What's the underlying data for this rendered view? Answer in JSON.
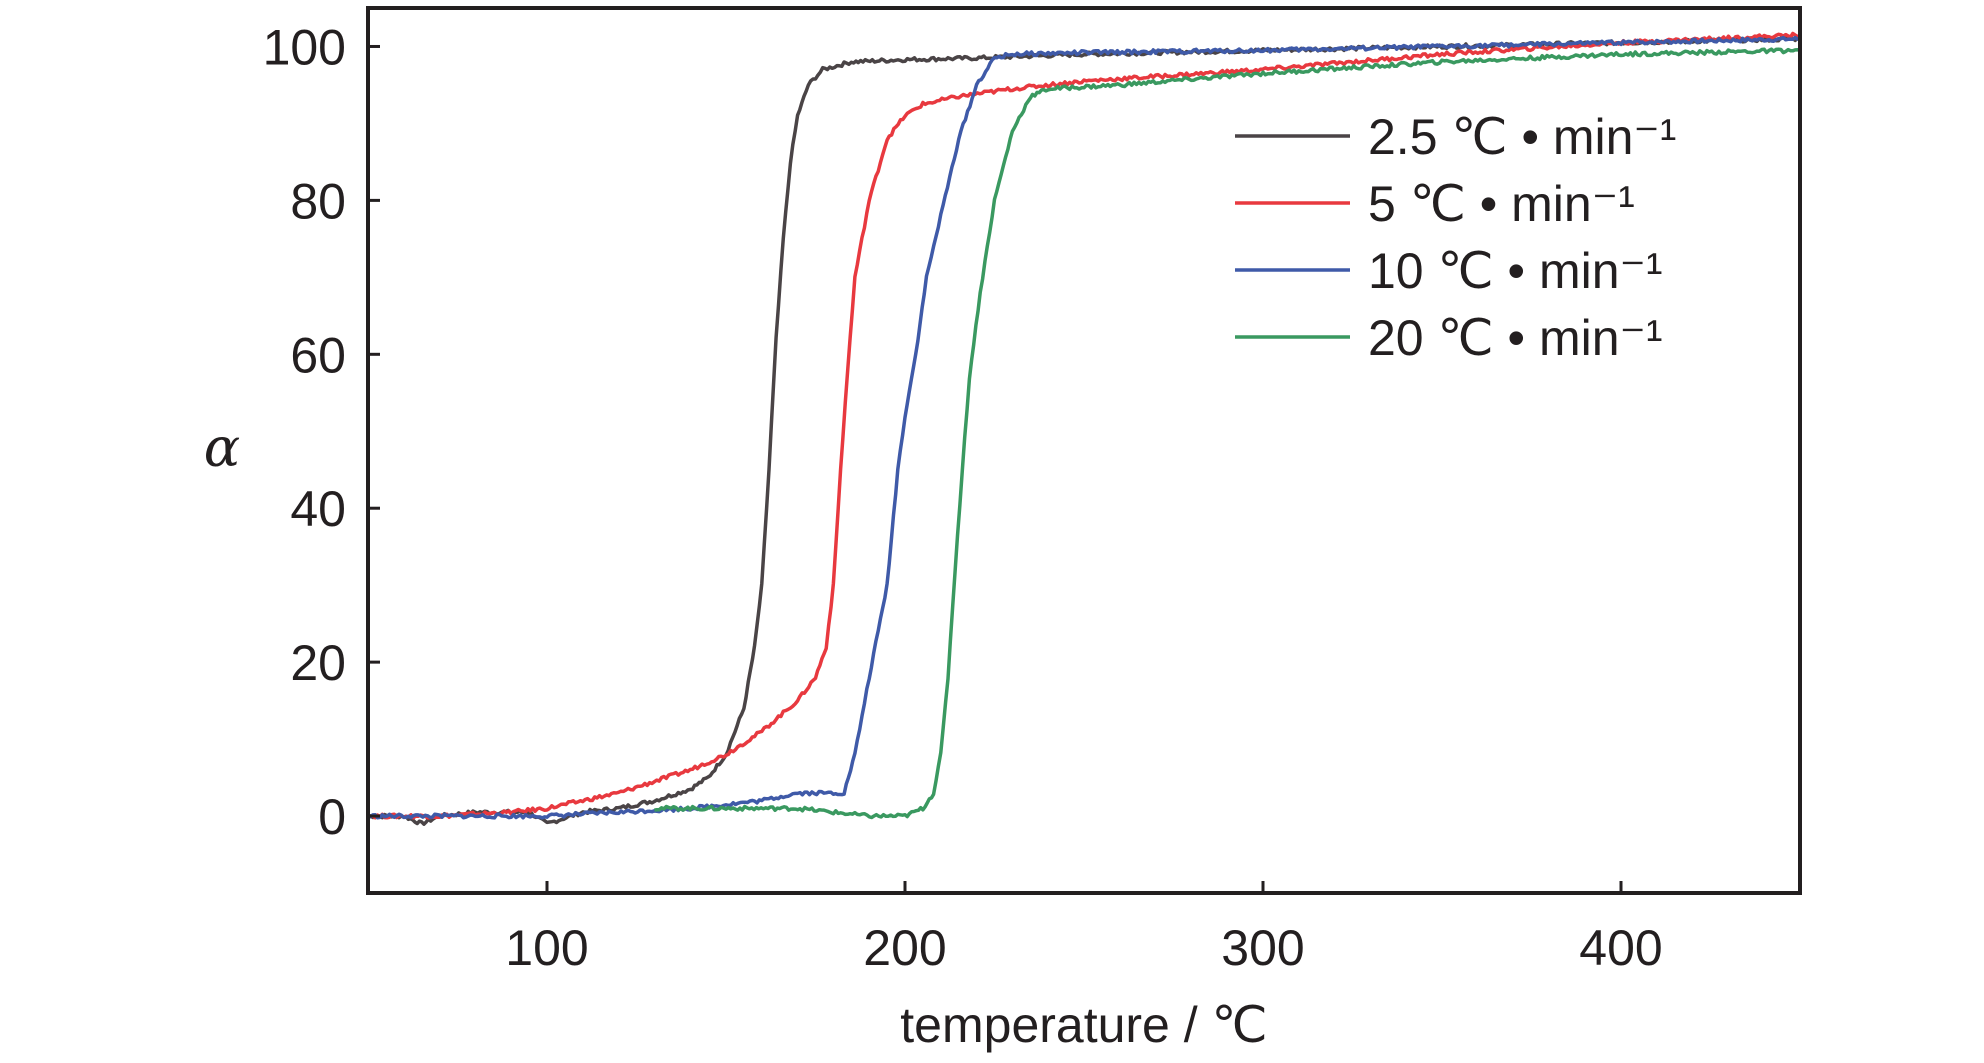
{
  "chart_data": {
    "type": "line",
    "title": "",
    "xlabel": "temperature / ℃",
    "ylabel": "α",
    "xlim": [
      50,
      450
    ],
    "ylim": [
      -10,
      105
    ],
    "xticks": [
      100,
      200,
      300,
      400
    ],
    "yticks": [
      0,
      20,
      40,
      60,
      80,
      100
    ],
    "grid": false,
    "legend_position": "top-right",
    "series": [
      {
        "name": "2.5 ℃ • min⁻¹",
        "color": "#4a4446",
        "points": [
          [
            50,
            0
          ],
          [
            60,
            0
          ],
          [
            65,
            -1
          ],
          [
            70,
            0
          ],
          [
            80,
            0.5
          ],
          [
            95,
            0.5
          ],
          [
            100,
            -1
          ],
          [
            110,
            0.5
          ],
          [
            120,
            1
          ],
          [
            130,
            2
          ],
          [
            140,
            3.5
          ],
          [
            145,
            5
          ],
          [
            150,
            8
          ],
          [
            155,
            14
          ],
          [
            158,
            22
          ],
          [
            160,
            30
          ],
          [
            162,
            45
          ],
          [
            164,
            62
          ],
          [
            166,
            75
          ],
          [
            168,
            85
          ],
          [
            170,
            91
          ],
          [
            173,
            95
          ],
          [
            177,
            97
          ],
          [
            185,
            98
          ],
          [
            200,
            98.3
          ],
          [
            220,
            98.5
          ],
          [
            250,
            99
          ],
          [
            300,
            99.5
          ],
          [
            350,
            100
          ],
          [
            400,
            100.5
          ],
          [
            450,
            101
          ]
        ]
      },
      {
        "name": "5 ℃ • min⁻¹",
        "color": "#e8393f",
        "points": [
          [
            50,
            0
          ],
          [
            70,
            0
          ],
          [
            90,
            0.5
          ],
          [
            100,
            1
          ],
          [
            110,
            2
          ],
          [
            120,
            3
          ],
          [
            130,
            4.5
          ],
          [
            140,
            6
          ],
          [
            150,
            8
          ],
          [
            160,
            11
          ],
          [
            170,
            15
          ],
          [
            175,
            18
          ],
          [
            178,
            22
          ],
          [
            180,
            30
          ],
          [
            182,
            45
          ],
          [
            184,
            58
          ],
          [
            186,
            70
          ],
          [
            190,
            80
          ],
          [
            195,
            88
          ],
          [
            200,
            91
          ],
          [
            205,
            92.5
          ],
          [
            215,
            93.5
          ],
          [
            230,
            94.5
          ],
          [
            250,
            95.5
          ],
          [
            300,
            97
          ],
          [
            350,
            99
          ],
          [
            400,
            100.5
          ],
          [
            450,
            101.5
          ]
        ]
      },
      {
        "name": "10 ℃ • min⁻¹",
        "color": "#3f5aa8",
        "points": [
          [
            50,
            0
          ],
          [
            60,
            0
          ],
          [
            80,
            0
          ],
          [
            100,
            0
          ],
          [
            120,
            0.5
          ],
          [
            140,
            1
          ],
          [
            160,
            2
          ],
          [
            170,
            3
          ],
          [
            180,
            3
          ],
          [
            183,
            3
          ],
          [
            186,
            8
          ],
          [
            190,
            18
          ],
          [
            195,
            30
          ],
          [
            198,
            45
          ],
          [
            200,
            52
          ],
          [
            203,
            60
          ],
          [
            206,
            70
          ],
          [
            210,
            78
          ],
          [
            215,
            88
          ],
          [
            220,
            95
          ],
          [
            225,
            98.5
          ],
          [
            230,
            99
          ],
          [
            250,
            99.2
          ],
          [
            300,
            99.5
          ],
          [
            350,
            100
          ],
          [
            400,
            100.5
          ],
          [
            450,
            101
          ]
        ]
      },
      {
        "name": "20 ℃ • min⁻¹",
        "color": "#3a9960",
        "points": [
          [
            130,
            1
          ],
          [
            150,
            1
          ],
          [
            165,
            1
          ],
          [
            170,
            1
          ],
          [
            180,
            0.5
          ],
          [
            190,
            0
          ],
          [
            200,
            0
          ],
          [
            205,
            1
          ],
          [
            208,
            3
          ],
          [
            210,
            8
          ],
          [
            212,
            18
          ],
          [
            214,
            32
          ],
          [
            216,
            45
          ],
          [
            218,
            57
          ],
          [
            221,
            68
          ],
          [
            225,
            80
          ],
          [
            230,
            89
          ],
          [
            235,
            93.5
          ],
          [
            240,
            94.5
          ],
          [
            260,
            95
          ],
          [
            300,
            96.5
          ],
          [
            350,
            98
          ],
          [
            400,
            99
          ],
          [
            450,
            99.5
          ]
        ]
      }
    ]
  }
}
